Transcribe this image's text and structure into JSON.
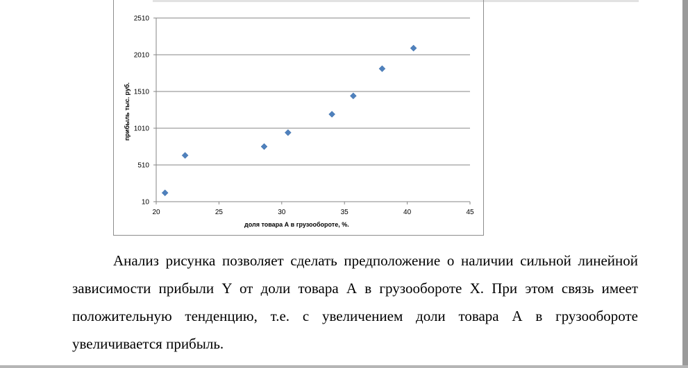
{
  "chart_data": {
    "type": "scatter",
    "xlabel": "доля товара А в грузообороте, %.",
    "ylabel": "прибыль тыс. руб.",
    "xlim": [
      20,
      45
    ],
    "ylim": [
      10,
      2510
    ],
    "x_ticks": [
      "20",
      "25",
      "30",
      "35",
      "40",
      "45"
    ],
    "y_ticks": [
      "10",
      "510",
      "1010",
      "1510",
      "2010",
      "2510"
    ],
    "grid": "horizontal",
    "marker_color": "#4f81bd",
    "series": [
      {
        "points": [
          {
            "x": 20.7,
            "y": 130
          },
          {
            "x": 22.3,
            "y": 640
          },
          {
            "x": 28.6,
            "y": 760
          },
          {
            "x": 30.5,
            "y": 950
          },
          {
            "x": 34.0,
            "y": 1200
          },
          {
            "x": 35.7,
            "y": 1450
          },
          {
            "x": 38.0,
            "y": 1820
          },
          {
            "x": 40.5,
            "y": 2100
          }
        ]
      }
    ]
  },
  "paragraph": {
    "text": "Анализ рисунка позволяет сделать предположение о наличии сильной линейной зависимости прибыли Y от доли товара А в грузообороте X. При этом связь имеет положительную тенденцию, т.е. с увеличением доли товара А в грузообороте увеличивается прибыль."
  }
}
